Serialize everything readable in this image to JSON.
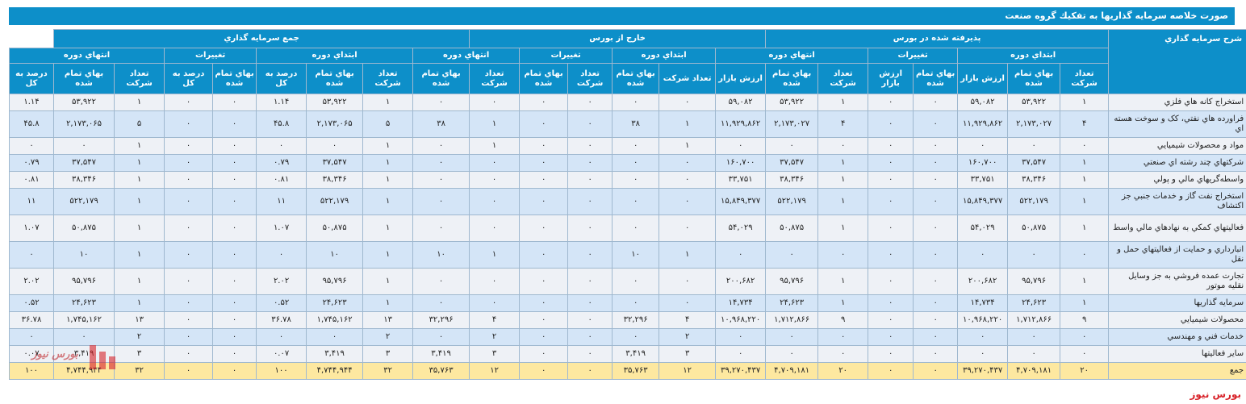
{
  "title": "صورت خلاصه سرمايه گذاريها به تفكيك گروه صنعت",
  "headers": {
    "description": "شرح سرمايه گذاري",
    "groups": {
      "listed": "پذيرفته شده در بورس",
      "outside": "خارج از بورس",
      "total": "جمع سرمايه گذاري"
    },
    "periods": {
      "start": "ابتداي دوره",
      "changes": "تغييرات",
      "end": "انتهاي دوره"
    },
    "cols": {
      "count": "تعداد شركت",
      "cost": "بهاي تمام شده",
      "market": "ارزش بازار",
      "percent": "درصد به كل"
    }
  },
  "rows": [
    {
      "desc": "استخراج كانه هاي فلزي",
      "v": [
        "۱",
        "۵۳,۹۲۲",
        "۵۹,۰۸۲",
        "۰",
        "۰",
        "۱",
        "۵۳,۹۲۲",
        "۵۹,۰۸۲",
        "۰",
        "۰",
        "۰",
        "۰",
        "۰",
        "۰",
        "۱",
        "۵۳,۹۲۲",
        "۱.۱۴",
        "۰",
        "۰",
        "۱",
        "۵۳,۹۲۲",
        "۱.۱۴"
      ]
    },
    {
      "desc": "فراورده هاي نفتي، كک و سوخت هسته اي",
      "v": [
        "۴",
        "۲,۱۷۳,۰۲۷",
        "۱۱,۹۲۹,۸۶۲",
        "۰",
        "۰",
        "۴",
        "۲,۱۷۳,۰۲۷",
        "۱۱,۹۲۹,۸۶۲",
        "۱",
        "۳۸",
        "۰",
        "۰",
        "۱",
        "۳۸",
        "۵",
        "۲,۱۷۳,۰۶۵",
        "۴۵.۸",
        "۰",
        "۰",
        "۵",
        "۲,۱۷۳,۰۶۵",
        "۴۵.۸"
      ]
    },
    {
      "desc": "مواد و محصولات شيميايي",
      "v": [
        "۰",
        "۰",
        "۰",
        "۰",
        "۰",
        "۰",
        "۰",
        "۰",
        "۱",
        "۰",
        "۰",
        "۰",
        "۱",
        "۰",
        "۱",
        "۰",
        "۰",
        "۰",
        "۰",
        "۱",
        "۰",
        "۰"
      ]
    },
    {
      "desc": "شركتهاي چند رشته اي صنعتي",
      "v": [
        "۱",
        "۳۷,۵۴۷",
        "۱۶۰,۷۰۰",
        "۰",
        "۰",
        "۱",
        "۳۷,۵۴۷",
        "۱۶۰,۷۰۰",
        "۰",
        "۰",
        "۰",
        "۰",
        "۰",
        "۰",
        "۱",
        "۳۷,۵۴۷",
        "۰.۷۹",
        "۰",
        "۰",
        "۱",
        "۳۷,۵۴۷",
        "۰.۷۹"
      ]
    },
    {
      "desc": "واسطه‌گريهاي مالي و پولي",
      "v": [
        "۱",
        "۳۸,۳۴۶",
        "۳۳,۷۵۱",
        "۰",
        "۰",
        "۱",
        "۳۸,۳۴۶",
        "۳۳,۷۵۱",
        "۰",
        "۰",
        "۰",
        "۰",
        "۰",
        "۰",
        "۱",
        "۳۸,۳۴۶",
        "۰.۸۱",
        "۰",
        "۰",
        "۱",
        "۳۸,۳۴۶",
        "۰.۸۱"
      ]
    },
    {
      "desc": "استخراج نفت گاز و خدمات جنبي جز اكتشاف",
      "v": [
        "۱",
        "۵۲۲,۱۷۹",
        "۱۵,۸۴۹,۳۷۷",
        "۰",
        "۰",
        "۱",
        "۵۲۲,۱۷۹",
        "۱۵,۸۴۹,۳۷۷",
        "۰",
        "۰",
        "۰",
        "۰",
        "۰",
        "۰",
        "۱",
        "۵۲۲,۱۷۹",
        "۱۱",
        "۰",
        "۰",
        "۱",
        "۵۲۲,۱۷۹",
        "۱۱"
      ]
    },
    {
      "desc": "فعاليتهاي كمكي به نهادهاي مالي واسط",
      "v": [
        "۱",
        "۵۰,۸۷۵",
        "۵۴,۰۲۹",
        "۰",
        "۰",
        "۱",
        "۵۰,۸۷۵",
        "۵۴,۰۲۹",
        "۰",
        "۰",
        "۰",
        "۰",
        "۰",
        "۰",
        "۱",
        "۵۰,۸۷۵",
        "۱.۰۷",
        "۰",
        "۰",
        "۱",
        "۵۰,۸۷۵",
        "۱.۰۷"
      ]
    },
    {
      "desc": "انبارداري و حمايت از فعاليتهاي حمل و نقل",
      "v": [
        "۰",
        "۰",
        "۰",
        "۰",
        "۰",
        "۰",
        "۰",
        "۰",
        "۱",
        "۱۰",
        "۰",
        "۰",
        "۱",
        "۱۰",
        "۱",
        "۱۰",
        "۰",
        "۰",
        "۰",
        "۱",
        "۱۰",
        "۰"
      ]
    },
    {
      "desc": "تجارت عمده فروشي به جز وسايل نقليه موتور",
      "v": [
        "۱",
        "۹۵,۷۹۶",
        "۲۰۰,۶۸۲",
        "۰",
        "۰",
        "۱",
        "۹۵,۷۹۶",
        "۲۰۰,۶۸۲",
        "۰",
        "۰",
        "۰",
        "۰",
        "۰",
        "۰",
        "۱",
        "۹۵,۷۹۶",
        "۲.۰۲",
        "۰",
        "۰",
        "۱",
        "۹۵,۷۹۶",
        "۲.۰۲"
      ]
    },
    {
      "desc": "سرمايه گذاريها",
      "v": [
        "۱",
        "۲۴,۶۲۳",
        "۱۴,۷۳۴",
        "۰",
        "۰",
        "۱",
        "۲۴,۶۲۳",
        "۱۴,۷۳۴",
        "۰",
        "۰",
        "۰",
        "۰",
        "۰",
        "۰",
        "۱",
        "۲۴,۶۲۳",
        "۰.۵۲",
        "۰",
        "۰",
        "۱",
        "۲۴,۶۲۳",
        "۰.۵۲"
      ]
    },
    {
      "desc": "محصولات شيميايي",
      "v": [
        "۹",
        "۱,۷۱۲,۸۶۶",
        "۱۰,۹۶۸,۲۲۰",
        "۰",
        "۰",
        "۹",
        "۱,۷۱۲,۸۶۶",
        "۱۰,۹۶۸,۲۲۰",
        "۴",
        "۳۲,۲۹۶",
        "۰",
        "۰",
        "۴",
        "۳۲,۲۹۶",
        "۱۳",
        "۱,۷۴۵,۱۶۲",
        "۳۶.۷۸",
        "۰",
        "۰",
        "۱۳",
        "۱,۷۴۵,۱۶۲",
        "۳۶.۷۸"
      ]
    },
    {
      "desc": "خدمات فني و مهندسي",
      "v": [
        "۰",
        "۰",
        "۰",
        "۰",
        "۰",
        "۰",
        "۰",
        "۰",
        "۲",
        "۰",
        "۰",
        "۰",
        "۲",
        "۰",
        "۲",
        "۰",
        "۰",
        "۰",
        "۰",
        "۲",
        "۰",
        "۰"
      ]
    },
    {
      "desc": "ساير فعاليتها",
      "v": [
        "۰",
        "۰",
        "۰",
        "۰",
        "۰",
        "۰",
        "۰",
        "۰",
        "۳",
        "۳,۴۱۹",
        "۰",
        "۰",
        "۳",
        "۳,۴۱۹",
        "۳",
        "۳,۴۱۹",
        "۰.۰۷",
        "۰",
        "۰",
        "۳",
        "۳,۴۱۹",
        "۰.۰۷"
      ]
    }
  ],
  "total": {
    "desc": "جمع",
    "v": [
      "۲۰",
      "۴,۷۰۹,۱۸۱",
      "۳۹,۲۷۰,۴۳۷",
      "۰",
      "۰",
      "۲۰",
      "۴,۷۰۹,۱۸۱",
      "۳۹,۲۷۰,۴۳۷",
      "۱۲",
      "۳۵,۷۶۳",
      "۰",
      "۰",
      "۱۲",
      "۳۵,۷۶۳",
      "۳۲",
      "۴,۷۴۴,۹۴۴",
      "۱۰۰",
      "۰",
      "۰",
      "۳۲",
      "۴,۷۴۴,۹۴۴",
      "۱۰۰"
    ]
  },
  "watermark_text": "بورس نیوز",
  "brand_text": "بورس نیوز"
}
